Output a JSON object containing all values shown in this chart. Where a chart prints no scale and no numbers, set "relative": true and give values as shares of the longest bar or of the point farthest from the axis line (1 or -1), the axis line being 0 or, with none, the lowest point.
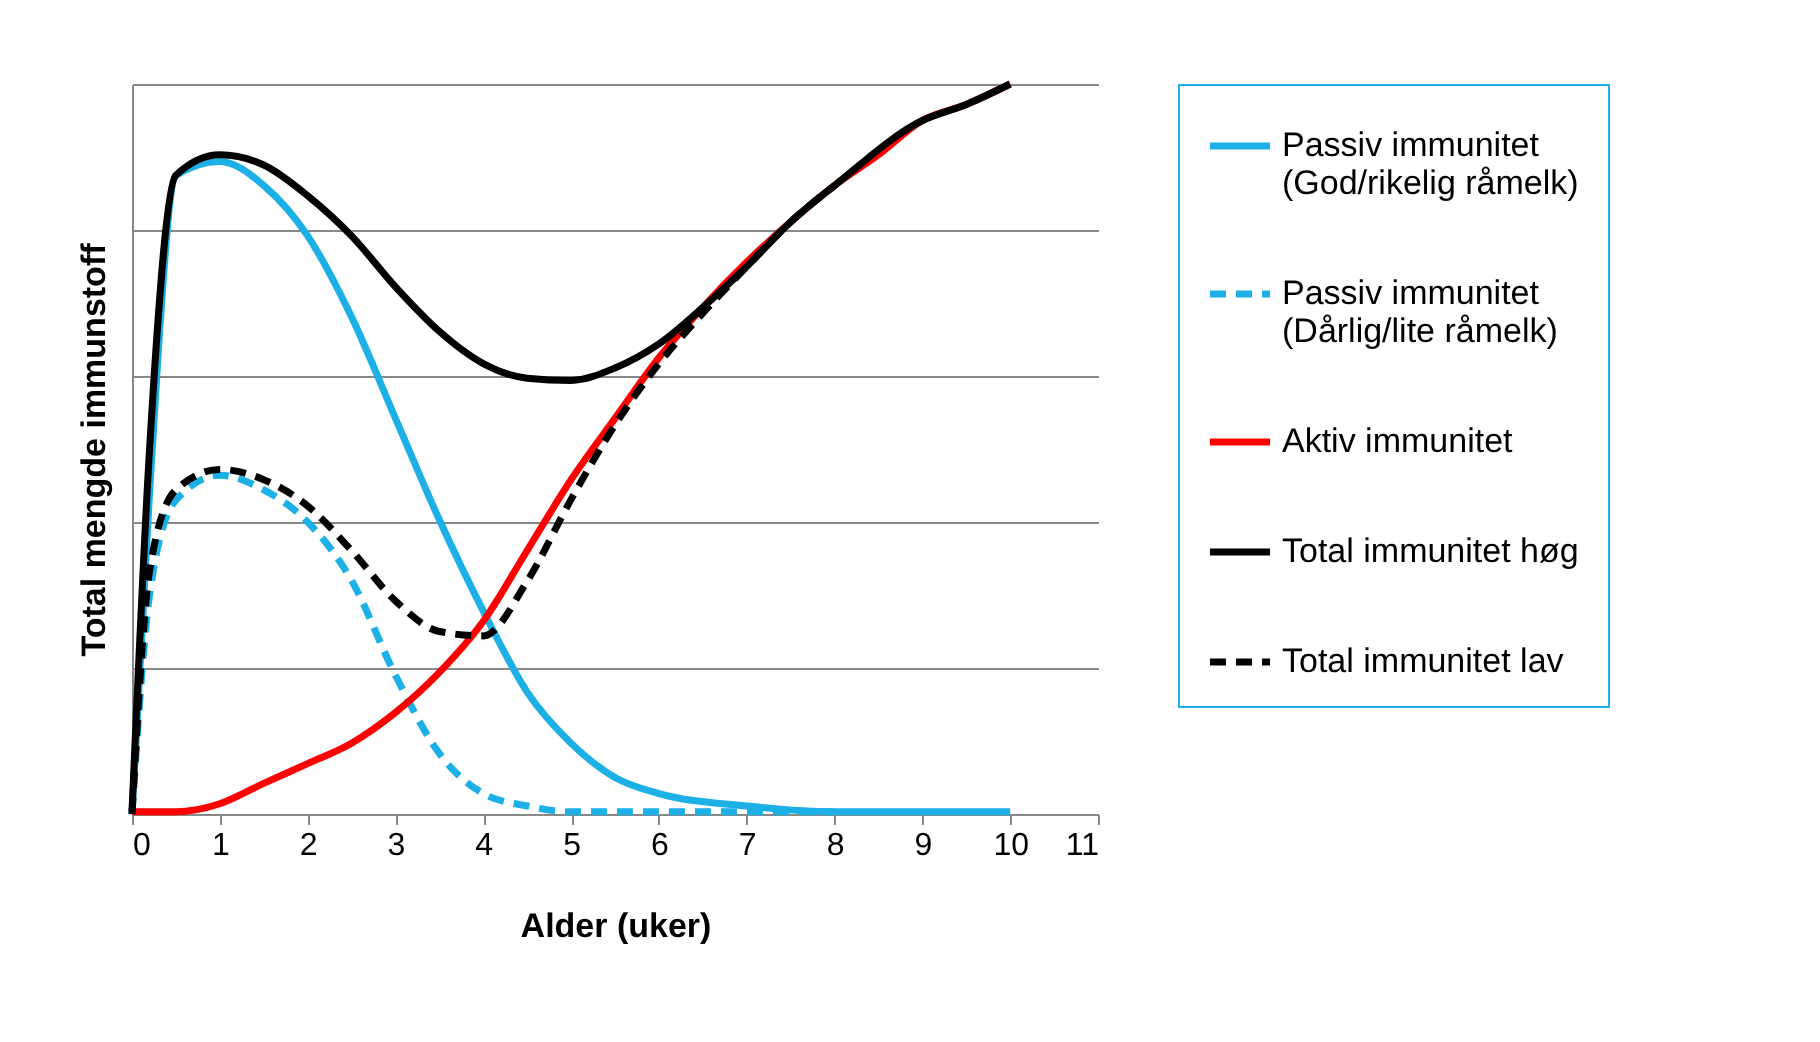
{
  "chart_data": {
    "type": "line",
    "xlabel": "Alder (uker)",
    "ylabel": "Total mengde immunstoff",
    "relative": true,
    "xlim": [
      0,
      11
    ],
    "xticks": [
      0,
      1,
      2,
      3,
      4,
      5,
      6,
      7,
      8,
      9,
      10,
      11
    ],
    "grid": "y",
    "legend": "right",
    "marker": "none",
    "series": [
      {
        "name": "Passiv immunitet (God/rikelig råmelk)",
        "color": "#1cb0e6",
        "line_style": "solid",
        "x": [
          0,
          0.2,
          0.5,
          1,
          1.5,
          2,
          2.5,
          3,
          3.5,
          4,
          4.5,
          5,
          5.5,
          6,
          7,
          8,
          10
        ],
        "values": [
          0,
          0.44,
          0.875,
          0.894,
          0.861,
          0.792,
          0.681,
          0.542,
          0.403,
          0.278,
          0.167,
          0.097,
          0.05,
          0.028,
          0.011,
          0.003,
          0.003
        ]
      },
      {
        "name": "Passiv immunitet (Dårlig/lite råmelk)",
        "color": "#1cb0e6",
        "line_style": "dashed",
        "x": [
          0,
          0.2,
          0.5,
          1,
          1.5,
          2,
          2.5,
          3,
          3.5,
          4,
          4.5,
          5,
          6,
          8
        ],
        "values": [
          0,
          0.3,
          0.43,
          0.464,
          0.444,
          0.4,
          0.32,
          0.19,
          0.083,
          0.028,
          0.011,
          0.003,
          0.003,
          0.003
        ]
      },
      {
        "name": "Aktiv immunitet",
        "color": "#ff0000",
        "line_style": "solid",
        "x": [
          0,
          0.5,
          1,
          1.5,
          2,
          2.5,
          3,
          3.5,
          4,
          4.5,
          5,
          5.5,
          6,
          6.5,
          7,
          7.5,
          8,
          8.5,
          9,
          9.5,
          10
        ],
        "values": [
          0.003,
          0.003,
          0.014,
          0.042,
          0.069,
          0.097,
          0.139,
          0.194,
          0.264,
          0.361,
          0.458,
          0.542,
          0.625,
          0.694,
          0.756,
          0.811,
          0.861,
          0.903,
          0.95,
          0.972,
          1
        ]
      },
      {
        "name": "Total immunitet høg",
        "color": "#000000",
        "line_style": "solid",
        "x": [
          0,
          0.2,
          0.5,
          1,
          1.5,
          2,
          2.5,
          3,
          3.5,
          4,
          4.5,
          5,
          5.5,
          6,
          6.5,
          7,
          7.5,
          8,
          9,
          9.5,
          10
        ],
        "values": [
          0.003,
          0.5,
          0.875,
          0.903,
          0.889,
          0.847,
          0.792,
          0.722,
          0.661,
          0.617,
          0.597,
          0.594,
          0.611,
          0.644,
          0.694,
          0.75,
          0.811,
          0.861,
          0.95,
          0.972,
          1
        ]
      },
      {
        "name": "Total immunitet lav",
        "color": "#000000",
        "line_style": "dashed",
        "x": [
          0,
          0.2,
          0.5,
          1,
          1.5,
          2,
          2.5,
          3,
          3.5,
          4,
          4.5,
          5,
          5.5,
          6,
          6.5,
          7,
          7.5,
          8
        ],
        "values": [
          0,
          0.333,
          0.444,
          0.472,
          0.458,
          0.422,
          0.361,
          0.292,
          0.25,
          0.244,
          0.319,
          0.431,
          0.533,
          0.617,
          0.686,
          0.75,
          0.811,
          0.861
        ]
      }
    ]
  }
}
